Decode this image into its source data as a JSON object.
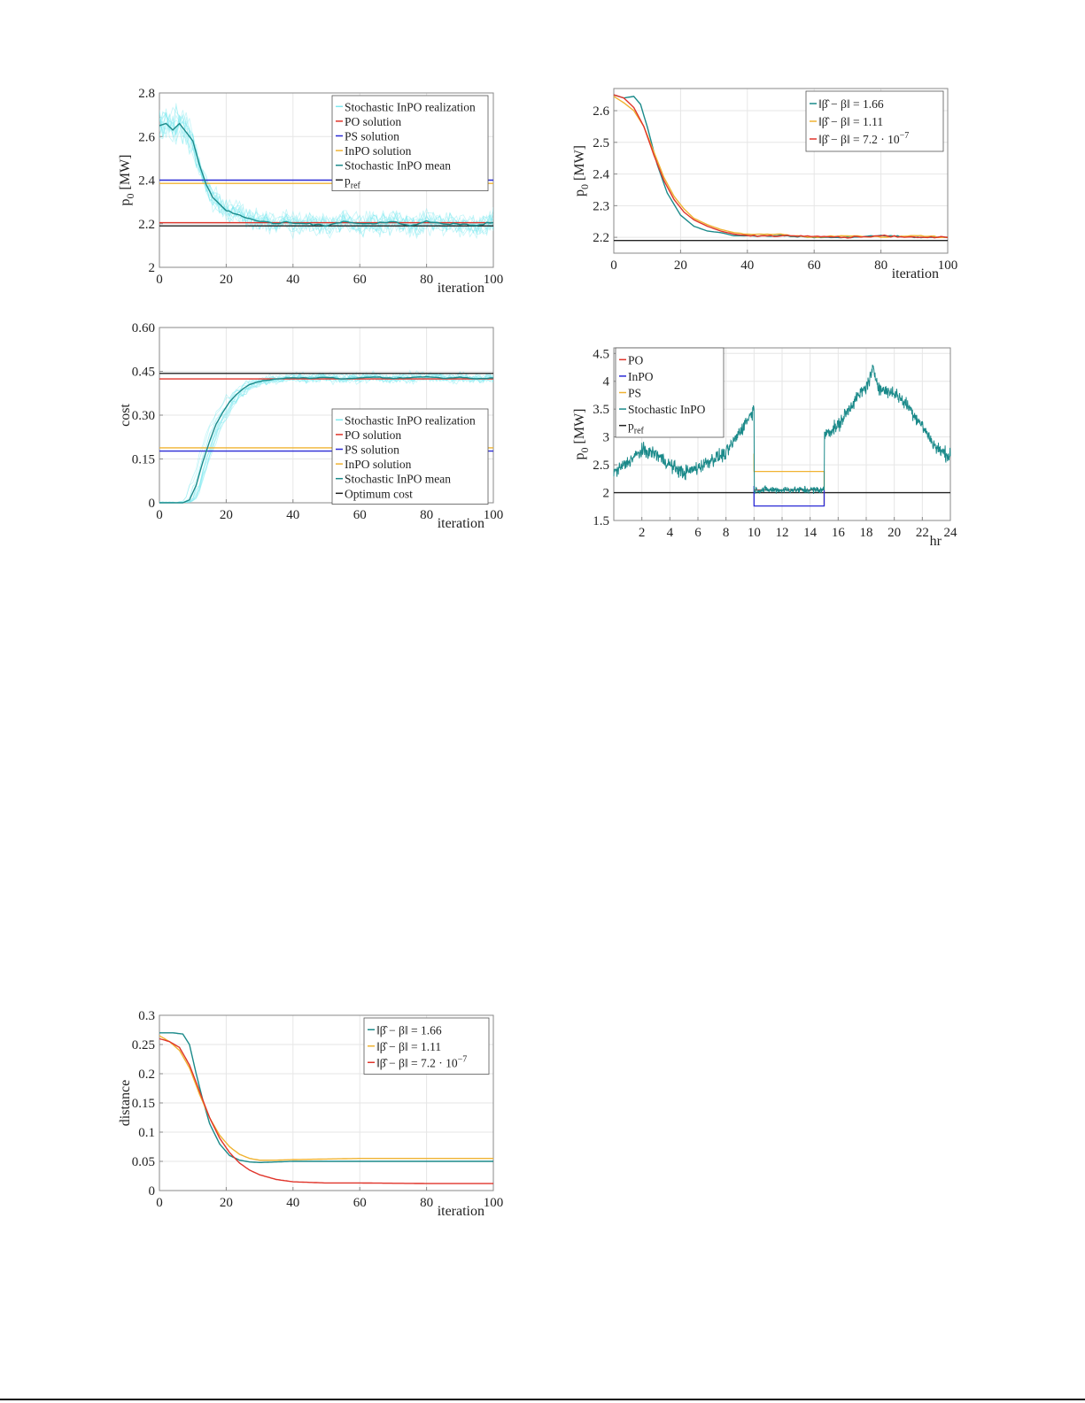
{
  "colors": {
    "realization": "#7fe9f0",
    "po": "#e0342a",
    "ps": "#2a2ad6",
    "inpo": "#f0b332",
    "mean": "#1b8a8a",
    "ref": "#222222",
    "grid": "#e6e6e6",
    "axis": "#8a8a8a"
  },
  "chart_data": [
    {
      "id": "p0-iteration",
      "type": "line",
      "xlabel": "iteration",
      "ylabel": "p",
      "ylabel_sub": "0",
      "ylabel_unit": " [MW]",
      "xlim": [
        0,
        100
      ],
      "ylim": [
        2,
        2.8
      ],
      "xticks": [
        "0",
        "20",
        "40",
        "60",
        "80",
        "100"
      ],
      "xtick_values": [
        0,
        20,
        40,
        60,
        80,
        100
      ],
      "yticks": [
        "2",
        "2.2",
        "2.4",
        "2.6",
        "2.8"
      ],
      "ytick_values": [
        2,
        2.2,
        2.4,
        2.6,
        2.8
      ],
      "grid": true,
      "legend_position": "top-right",
      "legend": [
        {
          "label": "Stochastic InPO realization",
          "color": "realization"
        },
        {
          "label": "PO solution",
          "color": "po"
        },
        {
          "label": "PS solution",
          "color": "ps"
        },
        {
          "label": "InPO solution",
          "color": "inpo"
        },
        {
          "label": "Stochastic InPO mean",
          "color": "mean"
        },
        {
          "label": "p",
          "sub": "ref",
          "color": "ref"
        }
      ],
      "hlines": [
        {
          "name": "PO solution",
          "y": 2.205,
          "color": "po"
        },
        {
          "name": "PS solution",
          "y": 2.4,
          "color": "ps"
        },
        {
          "name": "InPO solution",
          "y": 2.385,
          "color": "inpo"
        },
        {
          "name": "pref",
          "y": 2.19,
          "color": "ref"
        }
      ],
      "mean_series": {
        "x": [
          0,
          2,
          4,
          6,
          8,
          10,
          12,
          14,
          16,
          18,
          20,
          22,
          24,
          26,
          28,
          30,
          32,
          34,
          36,
          38,
          40,
          45,
          50,
          55,
          60,
          65,
          70,
          75,
          80,
          85,
          90,
          95,
          100
        ],
        "y": [
          2.65,
          2.66,
          2.63,
          2.66,
          2.62,
          2.58,
          2.47,
          2.38,
          2.32,
          2.29,
          2.26,
          2.25,
          2.24,
          2.23,
          2.22,
          2.21,
          2.21,
          2.2,
          2.2,
          2.21,
          2.2,
          2.2,
          2.19,
          2.21,
          2.2,
          2.2,
          2.21,
          2.19,
          2.21,
          2.2,
          2.2,
          2.19,
          2.21
        ]
      }
    },
    {
      "id": "p0-iteration-beta",
      "type": "line",
      "xlabel": "iteration",
      "ylabel": "p",
      "ylabel_sub": "0",
      "ylabel_unit": " [MW]",
      "xlim": [
        0,
        100
      ],
      "ylim": [
        2.15,
        2.67
      ],
      "xticks": [
        "0",
        "20",
        "40",
        "60",
        "80",
        "100"
      ],
      "xtick_values": [
        0,
        20,
        40,
        60,
        80,
        100
      ],
      "yticks": [
        "2.2",
        "2.3",
        "2.4",
        "2.5",
        "2.6"
      ],
      "ytick_values": [
        2.2,
        2.3,
        2.4,
        2.5,
        2.6
      ],
      "grid": true,
      "legend_position": "top-right",
      "legend": [
        {
          "label": "‖β̂ − β‖ = 1.66",
          "color": "mean"
        },
        {
          "label": "‖β̂ − β‖ = 1.11",
          "color": "inpo"
        },
        {
          "label": "‖β̂ − β‖ = 7.2 · 10",
          "sup": "−7",
          "color": "po"
        }
      ],
      "hlines": [
        {
          "name": "pref",
          "y": 2.19,
          "color": "ref"
        }
      ],
      "series": [
        {
          "color": "mean",
          "x": [
            0,
            3,
            6,
            8,
            10,
            13,
            16,
            20,
            24,
            28,
            32,
            36,
            40,
            50,
            60,
            70,
            80,
            90,
            100
          ],
          "y": [
            2.65,
            2.64,
            2.645,
            2.62,
            2.55,
            2.43,
            2.34,
            2.27,
            2.235,
            2.22,
            2.215,
            2.205,
            2.205,
            2.205,
            2.2,
            2.2,
            2.205,
            2.2,
            2.2
          ]
        },
        {
          "color": "inpo",
          "x": [
            0,
            3,
            6,
            9,
            12,
            15,
            18,
            21,
            24,
            28,
            32,
            36,
            40,
            50,
            60,
            70,
            80,
            90,
            100
          ],
          "y": [
            2.645,
            2.625,
            2.6,
            2.55,
            2.47,
            2.39,
            2.33,
            2.29,
            2.26,
            2.24,
            2.225,
            2.215,
            2.21,
            2.21,
            2.2,
            2.205,
            2.2,
            2.205,
            2.2
          ]
        },
        {
          "color": "po",
          "x": [
            0,
            3,
            6,
            9,
            12,
            15,
            18,
            21,
            24,
            28,
            32,
            36,
            40,
            50,
            60,
            70,
            80,
            90,
            100
          ],
          "y": [
            2.65,
            2.64,
            2.61,
            2.55,
            2.46,
            2.38,
            2.32,
            2.28,
            2.255,
            2.235,
            2.22,
            2.21,
            2.205,
            2.205,
            2.205,
            2.2,
            2.205,
            2.2,
            2.2
          ]
        }
      ]
    },
    {
      "id": "cost-iteration",
      "type": "line",
      "xlabel": "iteration",
      "ylabel": "cost",
      "xlim": [
        0,
        100
      ],
      "ylim": [
        0,
        0.6
      ],
      "xticks": [
        "0",
        "20",
        "40",
        "60",
        "80",
        "100"
      ],
      "xtick_values": [
        0,
        20,
        40,
        60,
        80,
        100
      ],
      "yticks": [
        "0",
        "0.15",
        "0.30",
        "0.45",
        "0.60"
      ],
      "ytick_values": [
        0,
        0.15,
        0.3,
        0.45,
        0.6
      ],
      "grid": true,
      "legend_position": "center-right",
      "legend": [
        {
          "label": "Stochastic InPO realization",
          "color": "realization"
        },
        {
          "label": "PO solution",
          "color": "po"
        },
        {
          "label": "PS solution",
          "color": "ps"
        },
        {
          "label": "InPO solution",
          "color": "inpo"
        },
        {
          "label": "Stochastic InPO mean",
          "color": "mean"
        },
        {
          "label": "Optimum cost",
          "color": "ref"
        }
      ],
      "hlines": [
        {
          "name": "Optimum cost",
          "y": 0.443,
          "color": "ref"
        },
        {
          "name": "PO solution",
          "y": 0.424,
          "color": "po"
        },
        {
          "name": "InPO solution",
          "y": 0.188,
          "color": "inpo"
        },
        {
          "name": "PS solution",
          "y": 0.177,
          "color": "ps"
        }
      ],
      "mean_series": {
        "x": [
          0,
          4,
          7,
          9,
          11,
          13,
          15,
          17,
          19,
          21,
          23,
          25,
          27,
          29,
          31,
          33,
          35,
          37,
          40,
          45,
          50,
          55,
          60,
          65,
          70,
          75,
          80,
          85,
          90,
          95,
          100
        ],
        "y": [
          0,
          0,
          0,
          0.01,
          0.06,
          0.14,
          0.21,
          0.27,
          0.31,
          0.345,
          0.37,
          0.39,
          0.405,
          0.412,
          0.418,
          0.42,
          0.424,
          0.426,
          0.428,
          0.426,
          0.43,
          0.424,
          0.428,
          0.43,
          0.426,
          0.428,
          0.432,
          0.426,
          0.43,
          0.424,
          0.428
        ]
      }
    },
    {
      "id": "p0-hr",
      "type": "line",
      "xlabel": "hr",
      "ylabel": "p",
      "ylabel_sub": "0",
      "ylabel_unit": " [MW]",
      "xlim": [
        0,
        24
      ],
      "ylim": [
        1.5,
        4.6
      ],
      "xticks": [
        "2",
        "4",
        "6",
        "8",
        "10",
        "12",
        "14",
        "16",
        "18",
        "20",
        "22",
        "24"
      ],
      "xtick_values": [
        2,
        4,
        6,
        8,
        10,
        12,
        14,
        16,
        18,
        20,
        22,
        24
      ],
      "yticks": [
        "1.5",
        "2",
        "2.5",
        "3",
        "3.5",
        "4",
        "4.5"
      ],
      "ytick_values": [
        1.5,
        2,
        2.5,
        3,
        3.5,
        4,
        4.5
      ],
      "grid": true,
      "legend_position": "top-left",
      "legend": [
        {
          "label": "PO",
          "color": "po"
        },
        {
          "label": "InPO",
          "color": "ps"
        },
        {
          "label": "PS",
          "color": "inpo"
        },
        {
          "label": "Stochastic InPO",
          "color": "mean"
        },
        {
          "label": "p",
          "sub": "ref",
          "color": "ref"
        }
      ],
      "hlines": [
        {
          "name": "pref",
          "y": 2.0,
          "color": "ref"
        }
      ],
      "window": {
        "x_start": 10,
        "x_end": 15,
        "ps_level": 2.38,
        "inpo_level": 1.76,
        "po_level": 2.05
      },
      "stochastic_series": {
        "x": [
          0,
          1,
          2,
          3,
          4,
          5,
          6,
          7,
          8,
          9,
          9.5,
          10,
          10.01,
          11,
          12,
          13,
          14,
          15,
          15.01,
          16,
          17,
          18,
          18.5,
          19,
          20,
          21,
          22,
          23,
          24
        ],
        "y": [
          2.35,
          2.55,
          2.75,
          2.7,
          2.5,
          2.35,
          2.45,
          2.6,
          2.7,
          3.1,
          3.3,
          3.5,
          2.05,
          2.05,
          2.05,
          2.05,
          2.05,
          2.05,
          3.05,
          3.2,
          3.6,
          3.9,
          4.2,
          3.85,
          3.8,
          3.55,
          3.2,
          2.8,
          2.65
        ]
      }
    },
    {
      "id": "distance-iteration",
      "type": "line",
      "xlabel": "iteration",
      "ylabel": "distance",
      "xlim": [
        0,
        100
      ],
      "ylim": [
        0,
        0.3
      ],
      "xticks": [
        "0",
        "20",
        "40",
        "60",
        "80",
        "100"
      ],
      "xtick_values": [
        0,
        20,
        40,
        60,
        80,
        100
      ],
      "yticks": [
        "0",
        "0.05",
        "0.1",
        "0.15",
        "0.2",
        "0.25",
        "0.3"
      ],
      "ytick_values": [
        0,
        0.05,
        0.1,
        0.15,
        0.2,
        0.25,
        0.3
      ],
      "grid": true,
      "legend_position": "top-right",
      "legend": [
        {
          "label": "‖β̂ − β‖ = 1.66",
          "color": "mean"
        },
        {
          "label": "‖β̂ − β‖ = 1.11",
          "color": "inpo"
        },
        {
          "label": "‖β̂ − β‖ = 7.2 · 10",
          "sup": "−7",
          "color": "po"
        }
      ],
      "series": [
        {
          "color": "mean",
          "x": [
            0,
            4,
            7,
            9,
            11,
            13,
            15,
            18,
            21,
            24,
            27,
            30,
            35,
            40,
            60,
            80,
            100
          ],
          "y": [
            0.27,
            0.27,
            0.268,
            0.25,
            0.2,
            0.155,
            0.115,
            0.08,
            0.06,
            0.052,
            0.049,
            0.048,
            0.049,
            0.05,
            0.05,
            0.05,
            0.05
          ]
        },
        {
          "color": "inpo",
          "x": [
            0,
            3,
            6,
            9,
            12,
            15,
            18,
            21,
            24,
            27,
            30,
            35,
            40,
            60,
            80,
            100
          ],
          "y": [
            0.265,
            0.255,
            0.24,
            0.21,
            0.165,
            0.125,
            0.095,
            0.075,
            0.062,
            0.055,
            0.052,
            0.052,
            0.053,
            0.055,
            0.055,
            0.055
          ]
        },
        {
          "color": "po",
          "x": [
            0,
            3,
            6,
            9,
            12,
            15,
            18,
            21,
            24,
            27,
            30,
            35,
            40,
            50,
            60,
            80,
            100
          ],
          "y": [
            0.26,
            0.255,
            0.245,
            0.215,
            0.17,
            0.125,
            0.09,
            0.065,
            0.047,
            0.035,
            0.027,
            0.019,
            0.015,
            0.013,
            0.013,
            0.012,
            0.012
          ]
        }
      ]
    }
  ]
}
